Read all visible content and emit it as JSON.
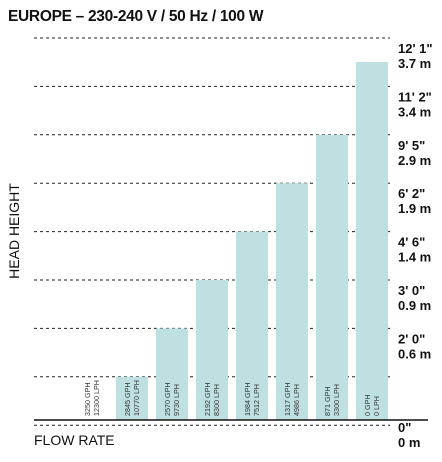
{
  "chart_data": {
    "type": "bar",
    "title": "EUROPE – 230-240 V / 50 Hz / 100 W",
    "xlabel": "FLOW RATE",
    "ylabel": "HEAD HEIGHT",
    "bar_color": "#bfe0e0",
    "gridline_color": "#222222",
    "grid": true,
    "y_ticks": [
      {
        "ft": "0\"",
        "m": "0 m"
      },
      {
        "ft": "2' 0\"",
        "m": "0.6 m"
      },
      {
        "ft": "3' 0\"",
        "m": "0.9 m"
      },
      {
        "ft": "4' 6\"",
        "m": "1.4 m"
      },
      {
        "ft": "6' 2\"",
        "m": "1.9 m"
      },
      {
        "ft": "9' 5\"",
        "m": "2.9 m"
      },
      {
        "ft": "11' 2\"",
        "m": "3.4 m"
      },
      {
        "ft": "12' 1\"",
        "m": "3.7 m"
      }
    ],
    "bars": [
      {
        "gph": "3250 GPH",
        "lph": "12300 LPH",
        "level": 0
      },
      {
        "gph": "2845 GPH",
        "lph": "10770 LPH",
        "level": 1
      },
      {
        "gph": "2570 GPH",
        "lph": "9730 LPH",
        "level": 2
      },
      {
        "gph": "2192 GPH",
        "lph": "8300 LPH",
        "level": 3
      },
      {
        "gph": "1984 GPH",
        "lph": "7512 LPH",
        "level": 4
      },
      {
        "gph": "1317 GPH",
        "lph": "4986 LPH",
        "level": 5
      },
      {
        "gph": "871 GPH",
        "lph": "3300 LPH",
        "level": 6
      },
      {
        "gph": "0 GPH",
        "lph": "0 LPH",
        "level": 7
      }
    ]
  }
}
